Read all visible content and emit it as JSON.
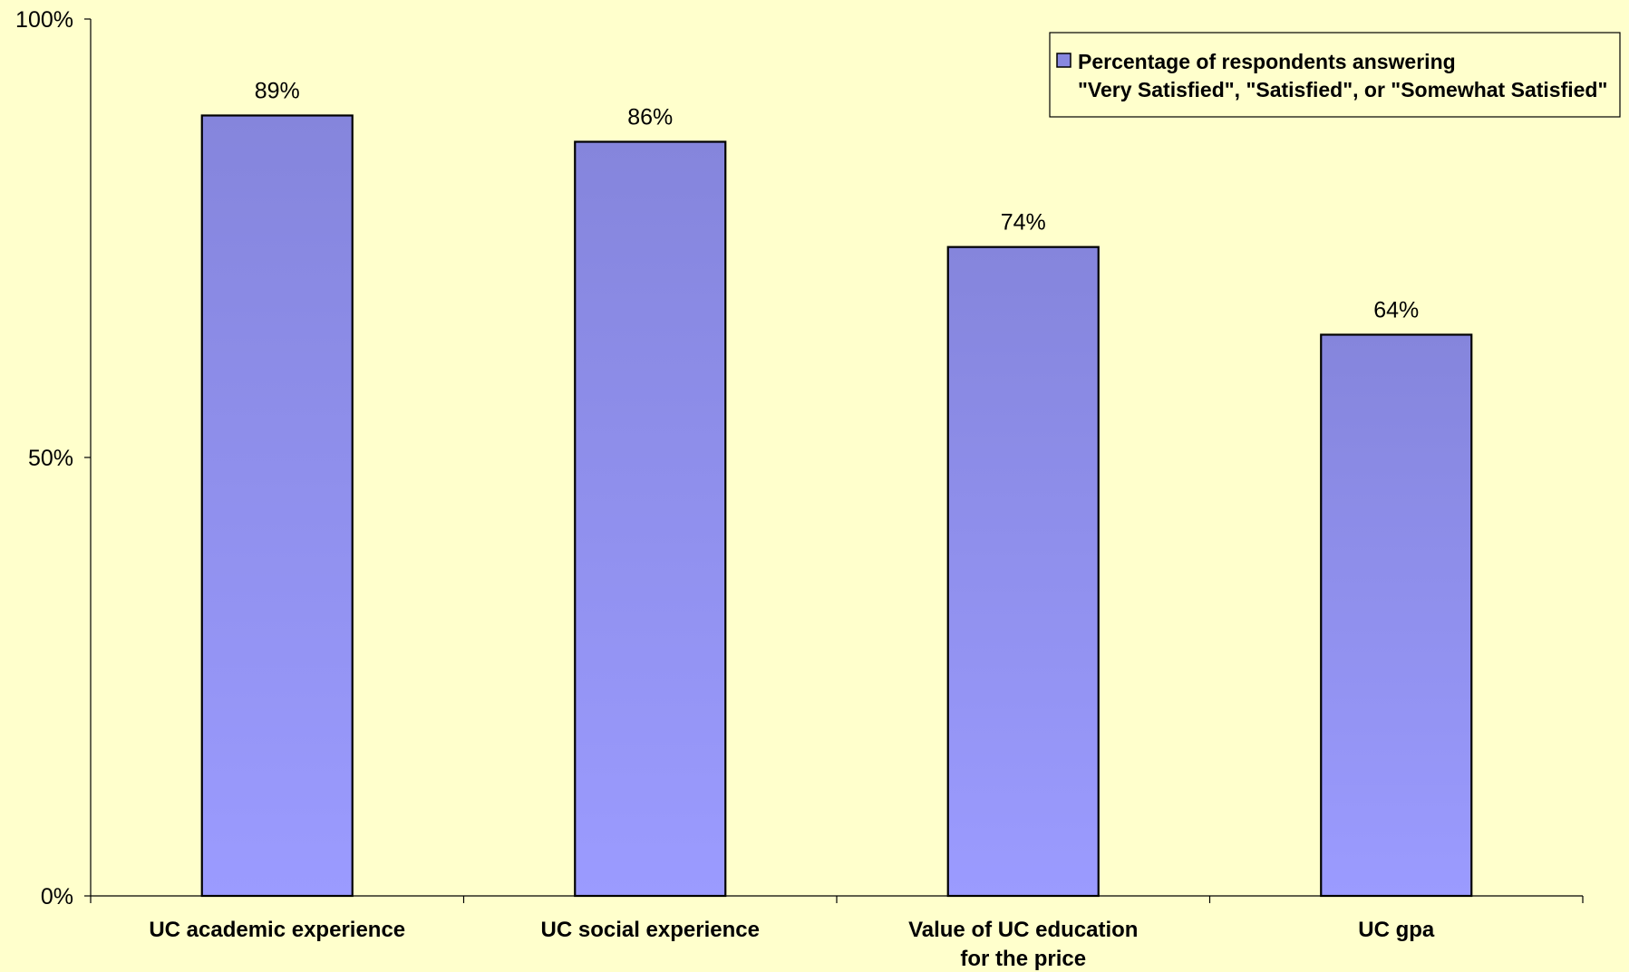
{
  "chart_data": {
    "type": "bar",
    "categories": [
      [
        "UC academic experience"
      ],
      [
        "UC social experience"
      ],
      [
        "Value of UC education",
        "for the price"
      ],
      [
        "UC gpa"
      ]
    ],
    "series": [
      {
        "name": "Percentage of respondents answering \"Very Satisfied\", \"Satisfied\", or \"Somewhat Satisfied\"",
        "legend_lines": [
          "Percentage of respondents answering",
          "\"Very Satisfied\", \"Satisfied\", or \"Somewhat Satisfied\""
        ],
        "values": [
          89,
          86,
          74,
          64
        ],
        "data_labels": [
          "89%",
          "86%",
          "74%",
          "64%"
        ]
      }
    ],
    "y_ticks": [
      {
        "value": 0,
        "label": "0%"
      },
      {
        "value": 50,
        "label": "50%"
      },
      {
        "value": 100,
        "label": "100%"
      }
    ],
    "ylim": [
      0,
      100
    ],
    "grid": false,
    "legend_position": "top-right",
    "colors": {
      "background": "#ffffcc",
      "bar_top": "#8585dc",
      "bar_bottom": "#9b9bff",
      "bar_edge": "#000000",
      "legend_swatch": "#8888e0"
    }
  }
}
